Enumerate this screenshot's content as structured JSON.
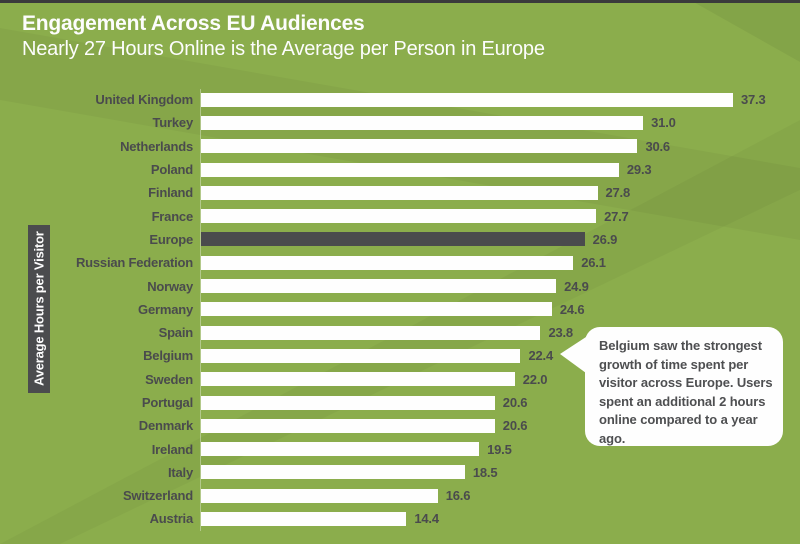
{
  "header": {
    "title": "Engagement Across EU Audiences",
    "subtitle": "Nearly 27 Hours Online is the Average per Person in Europe"
  },
  "chart_data": {
    "type": "bar",
    "orientation": "horizontal",
    "title": "Engagement Across EU Audiences",
    "subtitle": "Nearly 27 Hours Online is the Average per Person in Europe",
    "ylabel": "Average Hours per Visitor",
    "xlabel": "",
    "categories": [
      "United Kingdom",
      "Turkey",
      "Netherlands",
      "Poland",
      "Finland",
      "France",
      "Europe",
      "Russian Federation",
      "Norway",
      "Germany",
      "Spain",
      "Belgium",
      "Sweden",
      "Portugal",
      "Denmark",
      "Ireland",
      "Italy",
      "Switzerland",
      "Austria"
    ],
    "values": [
      37.3,
      31.0,
      30.6,
      29.3,
      27.8,
      27.7,
      26.9,
      26.1,
      24.9,
      24.6,
      23.8,
      22.4,
      22.0,
      20.6,
      20.6,
      19.5,
      18.5,
      16.6,
      14.4
    ],
    "highlight_category": "Europe",
    "value_format": "one_decimal",
    "grid": false,
    "legend": false,
    "colors": {
      "background": "#8BAD4C",
      "bar": "#FEFEFE",
      "highlight_bar": "#4A4B4D",
      "label_text": "#4A4B4D",
      "header_text": "#FDFDFD",
      "ylabel_box": "#4B4C4E",
      "top_border": "#3A3A3C"
    }
  },
  "callout": {
    "text": "Belgium saw the strongest growth of time spent per visitor across Europe. Users spent an additional 2 hours online compared to a year ago.",
    "points_to": "Belgium"
  }
}
